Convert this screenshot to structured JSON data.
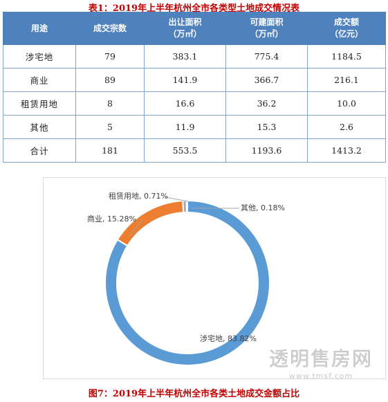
{
  "table_title": "表1：2019年上半年杭州全市各类型土地成交情况表",
  "table": {
    "headers": [
      {
        "line1": "用途",
        "line2": ""
      },
      {
        "line1": "成交宗数",
        "line2": ""
      },
      {
        "line1": "出让面积",
        "line2": "（万㎡）"
      },
      {
        "line1": "可建面积",
        "line2": "（万㎡）"
      },
      {
        "line1": "成交额",
        "line2": "（亿元）"
      }
    ],
    "rows": [
      [
        "涉宅地",
        "79",
        "383.1",
        "775.4",
        "1184.5"
      ],
      [
        "商业",
        "89",
        "141.9",
        "366.7",
        "216.1"
      ],
      [
        "租赁用地",
        "8",
        "16.6",
        "36.2",
        "10.0"
      ],
      [
        "其他",
        "5",
        "11.9",
        "15.3",
        "2.6"
      ],
      [
        "合计",
        "181",
        "553.5",
        "1193.6",
        "1413.2"
      ]
    ]
  },
  "chart_data": {
    "type": "pie",
    "donut": true,
    "slices": [
      {
        "label": "涉宅地, 83.82%",
        "value": 83.82,
        "color": "#5b9bd5"
      },
      {
        "label": "商业, 15.28%",
        "value": 15.28,
        "color": "#ed7d31"
      },
      {
        "label": "租赁用地, 0.71%",
        "value": 0.71,
        "color": "#a5a5a5"
      },
      {
        "label": "其他, 0.18%",
        "value": 0.18,
        "color": "#ffc000"
      }
    ],
    "legend": "none"
  },
  "figure_caption": "图7：2019年上半年杭州全市各类土地成交金额占比",
  "watermark": {
    "main": "透明售房网",
    "url": "www.tmsf.com"
  }
}
